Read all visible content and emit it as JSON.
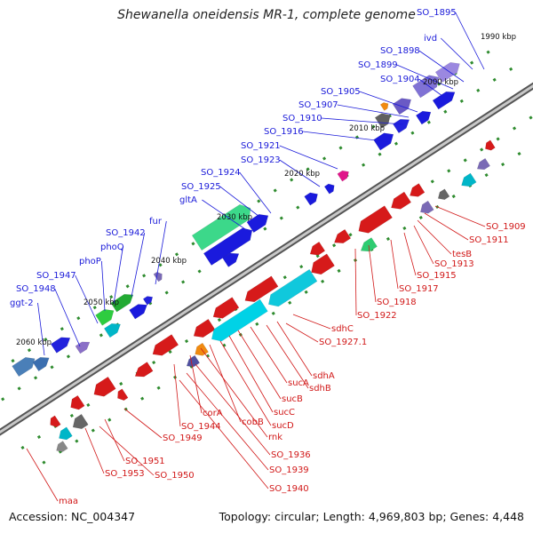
{
  "title": "Shewanella oneidensis MR-1, complete genome",
  "footer": {
    "accession": "Accession: NC_004347",
    "summary": "Topology: circular; Length: 4,969,803 bp; Genes: 4,448"
  },
  "colors": {
    "forward_label": "#1a1ad9",
    "reverse_label": "#d11818",
    "backbone": "#8a8a8a",
    "tick": "#2e8b2e"
  },
  "ticks": [
    "1990 kbp",
    "2000 kbp",
    "2010 kbp",
    "2020 kbp",
    "2030 kbp",
    "2040 kbp",
    "2050 kbp",
    "2060 kbp"
  ],
  "forward_labels": [
    "SO_1895",
    "ivd",
    "SO_1898",
    "SO_1899",
    "SO_1904",
    "SO_1905",
    "SO_1907",
    "SO_1910",
    "SO_1916",
    "SO_1921",
    "SO_1923",
    "SO_1924",
    "SO_1925",
    "gltA",
    "fur",
    "SO_1942",
    "phoQ",
    "phoP",
    "SO_1947",
    "SO_1948",
    "ggt-2"
  ],
  "reverse_labels": [
    "SO_1909",
    "SO_1911",
    "tesB",
    "SO_1913",
    "SO_1915",
    "SO_1917",
    "SO_1918",
    "SO_1922",
    "sdhC",
    "SO_1927.1",
    "sdhA",
    "sdhB",
    "sucA",
    "sucB",
    "sucC",
    "sucD",
    "cobB",
    "rnk",
    "corA",
    "SO_1936",
    "SO_1944",
    "SO_1939",
    "SO_1940",
    "SO_1949",
    "SO_1951",
    "SO_1950",
    "SO_1953",
    "maa"
  ]
}
